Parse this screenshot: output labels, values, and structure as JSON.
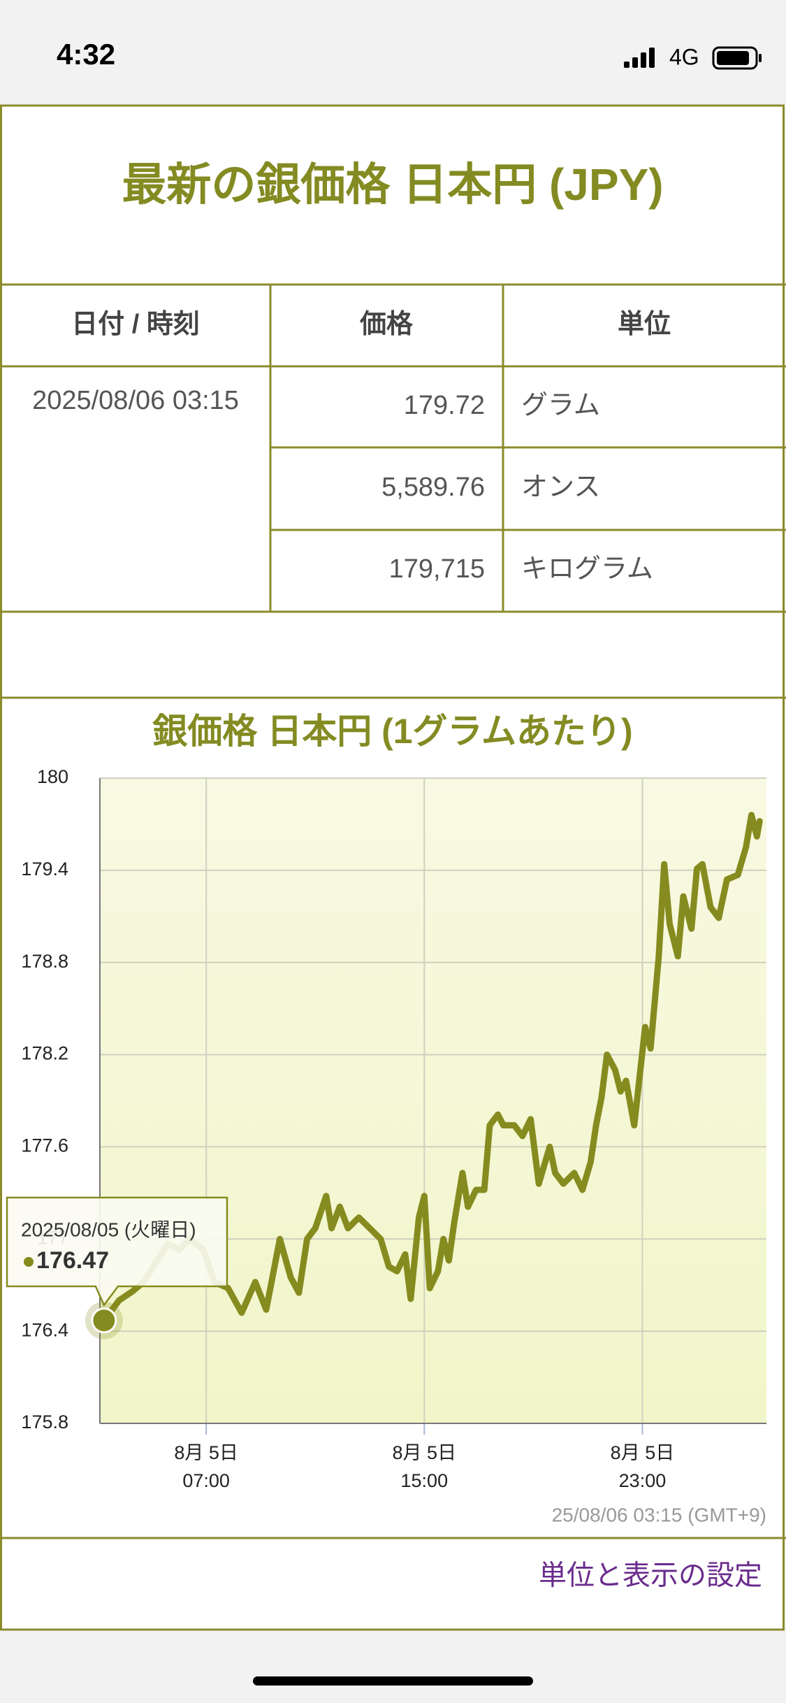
{
  "status_bar": {
    "time": "4:32",
    "network": "4G"
  },
  "header": {
    "title": "最新の銀価格 日本円 (JPY)"
  },
  "table": {
    "columns": [
      "日付 / 時刻",
      "価格",
      "単位"
    ],
    "date": "2025/08/06 03:15",
    "rows": [
      [
        "179.72",
        "グラム"
      ],
      [
        "5,589.76",
        "オンス"
      ],
      [
        "179,715",
        "キログラム"
      ]
    ]
  },
  "chart_data": {
    "type": "line",
    "title": "銀価格 日本円 (1グラムあたり)",
    "x": [
      3.25,
      3.8,
      4.3,
      4.7,
      5.2,
      5.6,
      6.0,
      6.4,
      6.9,
      7.3,
      7.8,
      8.3,
      8.8,
      9.2,
      9.7,
      10.1,
      10.4,
      10.7,
      11.0,
      11.4,
      11.6,
      11.9,
      12.2,
      12.6,
      13.0,
      13.4,
      13.7,
      14.0,
      14.3,
      14.5,
      14.8,
      15.0,
      15.2,
      15.5,
      15.7,
      15.9,
      16.1,
      16.4,
      16.6,
      16.9,
      17.2,
      17.4,
      17.7,
      17.9,
      18.3,
      18.6,
      18.9,
      19.2,
      19.6,
      19.8,
      20.1,
      20.5,
      20.8,
      21.1,
      21.3,
      21.5,
      21.7,
      22.0,
      22.2,
      22.4,
      22.7,
      22.9,
      23.1,
      23.3,
      23.6,
      23.8,
      24.0,
      24.3,
      24.5,
      24.8,
      25.0,
      25.2,
      25.5,
      25.8,
      26.1,
      26.5,
      26.8,
      27.0,
      27.2,
      27.3
    ],
    "series": [
      {
        "color": "#868b1f",
        "values": [
          176.47,
          176.6,
          176.66,
          176.72,
          176.86,
          176.97,
          176.93,
          177.0,
          176.93,
          176.72,
          176.68,
          176.52,
          176.72,
          176.54,
          177.0,
          176.75,
          176.65,
          177.0,
          177.07,
          177.28,
          177.07,
          177.21,
          177.07,
          177.14,
          177.07,
          177.0,
          176.82,
          176.79,
          176.9,
          176.61,
          177.14,
          177.28,
          176.68,
          176.79,
          177.0,
          176.86,
          177.11,
          177.43,
          177.21,
          177.32,
          177.32,
          177.74,
          177.81,
          177.74,
          177.74,
          177.67,
          177.78,
          177.36,
          177.6,
          177.43,
          177.36,
          177.43,
          177.32,
          177.5,
          177.74,
          177.92,
          178.2,
          178.1,
          177.96,
          178.03,
          177.74,
          178.06,
          178.38,
          178.24,
          178.84,
          179.44,
          179.05,
          178.84,
          179.23,
          179.02,
          179.41,
          179.44,
          179.16,
          179.09,
          179.34,
          179.37,
          179.55,
          179.76,
          179.62,
          179.72
        ]
      }
    ],
    "xlim": [
      3.1,
      27.55
    ],
    "xticks": [
      {
        "value": 7,
        "label": "8月 5日\n07:00"
      },
      {
        "value": 15,
        "label": "8月 5日\n15:00"
      },
      {
        "value": 23,
        "label": "8月 5日\n23:00"
      }
    ],
    "ylim": [
      175.8,
      180
    ],
    "yticks": [
      175.8,
      176.4,
      177,
      177.6,
      178.2,
      178.8,
      179.4,
      180
    ],
    "grid": true,
    "tooltip": {
      "label": "2025/08/05 (火曜日)"
    },
    "note": "25/08/06 03:15 (GMT+9)"
  },
  "footer": {
    "link": "単位と表示の設定"
  }
}
